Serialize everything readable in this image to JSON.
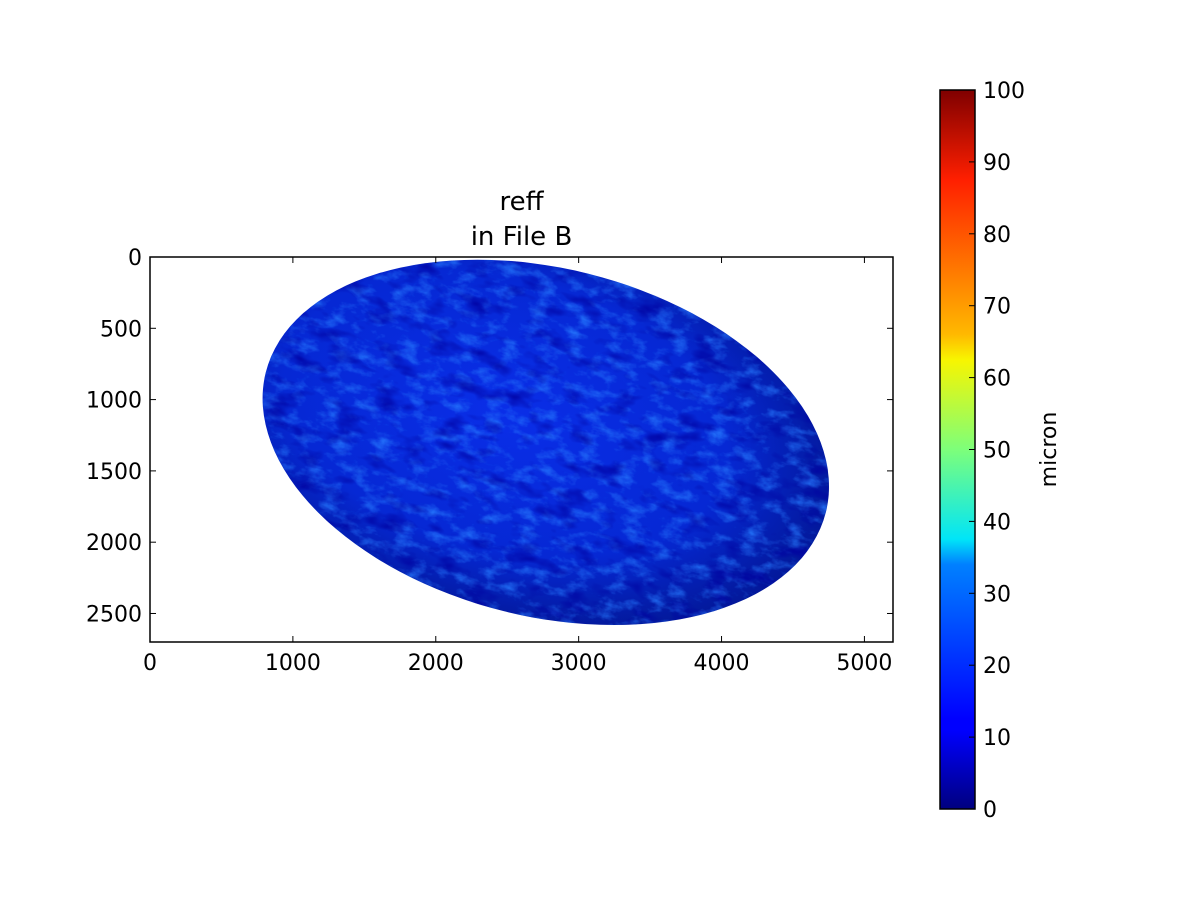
{
  "chart_data": {
    "type": "heatmap",
    "title": "reff\nin File B",
    "title_lines": [
      "reff",
      "in File B"
    ],
    "xlabel": "",
    "ylabel": "",
    "xlim": [
      0,
      5200
    ],
    "ylim": [
      2700,
      0
    ],
    "x_ticks": [
      0,
      1000,
      2000,
      3000,
      4000,
      5000
    ],
    "y_ticks": [
      0,
      500,
      1000,
      1500,
      2000,
      2500
    ],
    "x_tick_labels": [
      "0",
      "1000",
      "2000",
      "3000",
      "4000",
      "5000"
    ],
    "y_tick_labels": [
      "0",
      "500",
      "1000",
      "1500",
      "2000",
      "2500"
    ],
    "colormap": "jet",
    "colorbar": {
      "label": "micron",
      "range": [
        0,
        100
      ],
      "ticks": [
        0,
        10,
        20,
        30,
        40,
        50,
        60,
        70,
        80,
        90,
        100
      ],
      "tick_labels": [
        "0",
        "10",
        "20",
        "30",
        "40",
        "50",
        "60",
        "70",
        "80",
        "90",
        "100"
      ],
      "placement": "right"
    },
    "disk": {
      "shape": "earth disk (tilted ellipse)",
      "dominant_values_micron": [
        5,
        20
      ],
      "background": "masked (no data)"
    },
    "grid": false
  }
}
